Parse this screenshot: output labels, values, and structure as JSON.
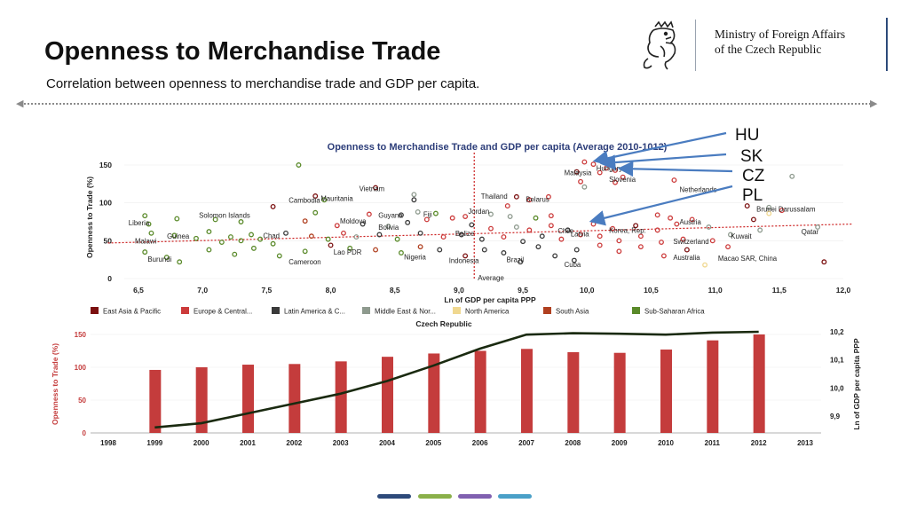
{
  "header": {
    "title": "Openness to Merchandise Trade",
    "subtitle": "Correlation between openness to merchandise trade and  GDP per capita.",
    "ministry_line1": "Ministry of Foreign Affairs",
    "ministry_line2": "of the Czech Republic",
    "logo_icon": "czech-lion-emblem-icon"
  },
  "annotations": [
    "HU",
    "SK",
    "CZ",
    "PL"
  ],
  "colors": {
    "east_asia": "#7b1010",
    "europe": "#cc3b3b",
    "latin": "#3a3a3a",
    "mideast": "#8e9a8e",
    "north_america": "#f0d890",
    "south_asia": "#b04020",
    "africa": "#5a8a2a",
    "bar": "#c43c3c",
    "line": "#1a2a10",
    "arrow": "#4a7cc0",
    "trend": "#cc2020",
    "title_blue": "#2d3e7a"
  },
  "bottom_pills": [
    "#2d4a7a",
    "#8ab04a",
    "#8060b0",
    "#4aa0c8"
  ],
  "chart_data": [
    {
      "type": "scatter",
      "title": "Openness to Merchandise Trade and GDP per capita (Average 2010-1012)",
      "xlabel": "Ln of GDP per capita PPP",
      "ylabel": "Openness to Trade (%)",
      "xlim": [
        6.5,
        12.0
      ],
      "ylim": [
        0,
        150
      ],
      "xticks": [
        "6,5",
        "7,0",
        "7,5",
        "8,0",
        "8,5",
        "9,0",
        "9,5",
        "10,0",
        "10,5",
        "11,0",
        "11,5",
        "12,0"
      ],
      "yticks": [
        "0",
        "50",
        "100",
        "150"
      ],
      "average_label": "Average",
      "average_x": 9.12,
      "trend": {
        "x": [
          6.4,
          12.0
        ],
        "y": [
          47,
          72
        ]
      },
      "legend": [
        {
          "name": "East Asia & Pacific",
          "color": "#7b1010"
        },
        {
          "name": "Europe & Central...",
          "color": "#cc3b3b"
        },
        {
          "name": "Latin America & C...",
          "color": "#3a3a3a"
        },
        {
          "name": "Middle East & Nor...",
          "color": "#8e9a8e"
        },
        {
          "name": "North America",
          "color": "#f0d890"
        },
        {
          "name": "South Asia",
          "color": "#b04020"
        },
        {
          "name": "Sub-Saharan Africa",
          "color": "#5a8a2a"
        }
      ],
      "labels": [
        {
          "text": "Hungary",
          "x": 10.1,
          "y": 146
        },
        {
          "text": "Malaysia",
          "x": 9.85,
          "y": 140
        },
        {
          "text": "Netherlands",
          "x": 10.75,
          "y": 118
        },
        {
          "text": "Slovenia",
          "x": 10.2,
          "y": 131
        },
        {
          "text": "Vietnam",
          "x": 8.25,
          "y": 119
        },
        {
          "text": "Cambodia",
          "x": 7.7,
          "y": 104
        },
        {
          "text": "Mauritania",
          "x": 7.95,
          "y": 106
        },
        {
          "text": "Thailand",
          "x": 9.2,
          "y": 109
        },
        {
          "text": "Belarus",
          "x": 9.55,
          "y": 105
        },
        {
          "text": "Brunei Darussalam",
          "x": 11.35,
          "y": 92
        },
        {
          "text": "Solomon Islands",
          "x": 7.0,
          "y": 84
        },
        {
          "text": "Guyana",
          "x": 8.4,
          "y": 84
        },
        {
          "text": "Fiji",
          "x": 8.75,
          "y": 85
        },
        {
          "text": "Jordan",
          "x": 9.1,
          "y": 89
        },
        {
          "text": "Moldova",
          "x": 8.1,
          "y": 76
        },
        {
          "text": "Austria",
          "x": 10.75,
          "y": 75
        },
        {
          "text": "Liberia",
          "x": 6.45,
          "y": 74
        },
        {
          "text": "Bolivia",
          "x": 8.4,
          "y": 68
        },
        {
          "text": "Belize",
          "x": 9.0,
          "y": 60
        },
        {
          "text": "Latvia",
          "x": 9.9,
          "y": 59
        },
        {
          "text": "Chile",
          "x": 9.8,
          "y": 63
        },
        {
          "text": "Korea, Rep.",
          "x": 10.2,
          "y": 64
        },
        {
          "text": "Qatar",
          "x": 11.7,
          "y": 62
        },
        {
          "text": "Guinea",
          "x": 6.75,
          "y": 56
        },
        {
          "text": "Chad",
          "x": 7.5,
          "y": 57
        },
        {
          "text": "Kuwait",
          "x": 11.15,
          "y": 56
        },
        {
          "text": "Malawi",
          "x": 6.5,
          "y": 50
        },
        {
          "text": "Switzerland",
          "x": 10.7,
          "y": 49
        },
        {
          "text": "Lao PDR",
          "x": 8.05,
          "y": 35
        },
        {
          "text": "Nigeria",
          "x": 8.6,
          "y": 29
        },
        {
          "text": "Burundi",
          "x": 6.6,
          "y": 26
        },
        {
          "text": "Cameroon",
          "x": 7.7,
          "y": 22
        },
        {
          "text": "Indonesia",
          "x": 8.95,
          "y": 24
        },
        {
          "text": "Brazil",
          "x": 9.4,
          "y": 25
        },
        {
          "text": "Cuba",
          "x": 9.85,
          "y": 19
        },
        {
          "text": "Australia",
          "x": 10.7,
          "y": 28
        },
        {
          "text": "Macao SAR, China",
          "x": 11.05,
          "y": 27
        }
      ],
      "points": [
        {
          "x": 7.75,
          "y": 150,
          "c": "africa"
        },
        {
          "x": 10.15,
          "y": 146,
          "c": "europe"
        },
        {
          "x": 10.05,
          "y": 151,
          "c": "europe"
        },
        {
          "x": 9.98,
          "y": 154,
          "c": "europe"
        },
        {
          "x": 9.92,
          "y": 141,
          "c": "east_asia"
        },
        {
          "x": 10.1,
          "y": 140,
          "c": "europe"
        },
        {
          "x": 10.22,
          "y": 143,
          "c": "europe"
        },
        {
          "x": 10.68,
          "y": 130,
          "c": "europe"
        },
        {
          "x": 10.28,
          "y": 134,
          "c": "europe"
        },
        {
          "x": 10.22,
          "y": 127,
          "c": "europe"
        },
        {
          "x": 9.95,
          "y": 128,
          "c": "europe"
        },
        {
          "x": 9.98,
          "y": 121,
          "c": "mideast"
        },
        {
          "x": 11.6,
          "y": 135,
          "c": "mideast"
        },
        {
          "x": 8.35,
          "y": 120,
          "c": "east_asia"
        },
        {
          "x": 7.88,
          "y": 109,
          "c": "east_asia"
        },
        {
          "x": 7.95,
          "y": 104,
          "c": "africa"
        },
        {
          "x": 8.65,
          "y": 111,
          "c": "mideast"
        },
        {
          "x": 8.65,
          "y": 104,
          "c": "latin"
        },
        {
          "x": 9.45,
          "y": 108,
          "c": "east_asia"
        },
        {
          "x": 9.55,
          "y": 104,
          "c": "europe"
        },
        {
          "x": 9.7,
          "y": 108,
          "c": "europe"
        },
        {
          "x": 9.38,
          "y": 96,
          "c": "europe"
        },
        {
          "x": 11.25,
          "y": 96,
          "c": "east_asia"
        },
        {
          "x": 11.42,
          "y": 94,
          "c": "mideast"
        },
        {
          "x": 7.55,
          "y": 95,
          "c": "east_asia"
        },
        {
          "x": 7.88,
          "y": 87,
          "c": "africa"
        },
        {
          "x": 8.3,
          "y": 85,
          "c": "europe"
        },
        {
          "x": 8.55,
          "y": 84,
          "c": "latin"
        },
        {
          "x": 8.68,
          "y": 88,
          "c": "mideast"
        },
        {
          "x": 8.82,
          "y": 86,
          "c": "africa"
        },
        {
          "x": 8.95,
          "y": 80,
          "c": "europe"
        },
        {
          "x": 9.05,
          "y": 82,
          "c": "europe"
        },
        {
          "x": 9.25,
          "y": 85,
          "c": "mideast"
        },
        {
          "x": 9.4,
          "y": 82,
          "c": "mideast"
        },
        {
          "x": 9.6,
          "y": 80,
          "c": "africa"
        },
        {
          "x": 9.72,
          "y": 83,
          "c": "europe"
        },
        {
          "x": 10.55,
          "y": 84,
          "c": "europe"
        },
        {
          "x": 10.65,
          "y": 80,
          "c": "europe"
        },
        {
          "x": 10.82,
          "y": 78,
          "c": "europe"
        },
        {
          "x": 11.3,
          "y": 78,
          "c": "east_asia"
        },
        {
          "x": 11.42,
          "y": 86,
          "c": "north_america"
        },
        {
          "x": 11.52,
          "y": 90,
          "c": "europe"
        },
        {
          "x": 6.55,
          "y": 83,
          "c": "africa"
        },
        {
          "x": 6.8,
          "y": 79,
          "c": "africa"
        },
        {
          "x": 7.1,
          "y": 78,
          "c": "africa"
        },
        {
          "x": 7.3,
          "y": 75,
          "c": "africa"
        },
        {
          "x": 7.8,
          "y": 76,
          "c": "south_asia"
        },
        {
          "x": 8.05,
          "y": 70,
          "c": "europe"
        },
        {
          "x": 8.25,
          "y": 72,
          "c": "latin"
        },
        {
          "x": 8.45,
          "y": 69,
          "c": "mideast"
        },
        {
          "x": 8.6,
          "y": 74,
          "c": "latin"
        },
        {
          "x": 8.75,
          "y": 78,
          "c": "europe"
        },
        {
          "x": 9.1,
          "y": 71,
          "c": "latin"
        },
        {
          "x": 9.25,
          "y": 66,
          "c": "europe"
        },
        {
          "x": 9.45,
          "y": 68,
          "c": "mideast"
        },
        {
          "x": 9.55,
          "y": 64,
          "c": "europe"
        },
        {
          "x": 9.72,
          "y": 70,
          "c": "europe"
        },
        {
          "x": 9.85,
          "y": 64,
          "c": "latin"
        },
        {
          "x": 10.05,
          "y": 72,
          "c": "europe"
        },
        {
          "x": 10.2,
          "y": 66,
          "c": "europe"
        },
        {
          "x": 10.38,
          "y": 70,
          "c": "east_asia"
        },
        {
          "x": 10.55,
          "y": 64,
          "c": "europe"
        },
        {
          "x": 10.7,
          "y": 72,
          "c": "europe"
        },
        {
          "x": 10.95,
          "y": 68,
          "c": "mideast"
        },
        {
          "x": 11.8,
          "y": 68,
          "c": "mideast"
        },
        {
          "x": 11.35,
          "y": 64,
          "c": "mideast"
        },
        {
          "x": 6.58,
          "y": 72,
          "c": "africa"
        },
        {
          "x": 6.6,
          "y": 60,
          "c": "africa"
        },
        {
          "x": 6.78,
          "y": 57,
          "c": "africa"
        },
        {
          "x": 6.95,
          "y": 53,
          "c": "africa"
        },
        {
          "x": 7.05,
          "y": 62,
          "c": "africa"
        },
        {
          "x": 7.15,
          "y": 48,
          "c": "africa"
        },
        {
          "x": 7.22,
          "y": 55,
          "c": "africa"
        },
        {
          "x": 7.3,
          "y": 50,
          "c": "africa"
        },
        {
          "x": 7.38,
          "y": 58,
          "c": "africa"
        },
        {
          "x": 7.45,
          "y": 52,
          "c": "africa"
        },
        {
          "x": 7.55,
          "y": 46,
          "c": "africa"
        },
        {
          "x": 7.65,
          "y": 60,
          "c": "latin"
        },
        {
          "x": 7.85,
          "y": 56,
          "c": "south_asia"
        },
        {
          "x": 7.98,
          "y": 52,
          "c": "africa"
        },
        {
          "x": 8.1,
          "y": 60,
          "c": "europe"
        },
        {
          "x": 8.2,
          "y": 55,
          "c": "mideast"
        },
        {
          "x": 8.38,
          "y": 58,
          "c": "latin"
        },
        {
          "x": 8.52,
          "y": 52,
          "c": "africa"
        },
        {
          "x": 8.7,
          "y": 60,
          "c": "latin"
        },
        {
          "x": 8.88,
          "y": 55,
          "c": "europe"
        },
        {
          "x": 9.02,
          "y": 58,
          "c": "latin"
        },
        {
          "x": 9.18,
          "y": 52,
          "c": "latin"
        },
        {
          "x": 9.35,
          "y": 55,
          "c": "europe"
        },
        {
          "x": 9.5,
          "y": 49,
          "c": "latin"
        },
        {
          "x": 9.65,
          "y": 56,
          "c": "latin"
        },
        {
          "x": 9.8,
          "y": 52,
          "c": "europe"
        },
        {
          "x": 9.95,
          "y": 58,
          "c": "europe"
        },
        {
          "x": 10.1,
          "y": 56,
          "c": "europe"
        },
        {
          "x": 10.25,
          "y": 50,
          "c": "europe"
        },
        {
          "x": 10.42,
          "y": 56,
          "c": "europe"
        },
        {
          "x": 10.58,
          "y": 48,
          "c": "europe"
        },
        {
          "x": 10.75,
          "y": 52,
          "c": "europe"
        },
        {
          "x": 10.98,
          "y": 50,
          "c": "europe"
        },
        {
          "x": 11.12,
          "y": 58,
          "c": "mideast"
        },
        {
          "x": 6.55,
          "y": 35,
          "c": "africa"
        },
        {
          "x": 6.72,
          "y": 28,
          "c": "africa"
        },
        {
          "x": 6.82,
          "y": 22,
          "c": "africa"
        },
        {
          "x": 7.05,
          "y": 38,
          "c": "africa"
        },
        {
          "x": 7.25,
          "y": 32,
          "c": "africa"
        },
        {
          "x": 7.4,
          "y": 40,
          "c": "africa"
        },
        {
          "x": 7.6,
          "y": 30,
          "c": "africa"
        },
        {
          "x": 7.8,
          "y": 36,
          "c": "africa"
        },
        {
          "x": 8.0,
          "y": 44,
          "c": "east_asia"
        },
        {
          "x": 8.15,
          "y": 40,
          "c": "africa"
        },
        {
          "x": 8.35,
          "y": 38,
          "c": "south_asia"
        },
        {
          "x": 8.55,
          "y": 34,
          "c": "africa"
        },
        {
          "x": 8.7,
          "y": 42,
          "c": "south_asia"
        },
        {
          "x": 8.85,
          "y": 38,
          "c": "latin"
        },
        {
          "x": 9.05,
          "y": 30,
          "c": "east_asia"
        },
        {
          "x": 9.2,
          "y": 38,
          "c": "latin"
        },
        {
          "x": 9.35,
          "y": 34,
          "c": "latin"
        },
        {
          "x": 9.48,
          "y": 22,
          "c": "latin"
        },
        {
          "x": 9.62,
          "y": 42,
          "c": "latin"
        },
        {
          "x": 9.75,
          "y": 30,
          "c": "latin"
        },
        {
          "x": 9.92,
          "y": 38,
          "c": "latin"
        },
        {
          "x": 10.1,
          "y": 44,
          "c": "europe"
        },
        {
          "x": 10.25,
          "y": 36,
          "c": "europe"
        },
        {
          "x": 10.42,
          "y": 42,
          "c": "europe"
        },
        {
          "x": 10.6,
          "y": 30,
          "c": "europe"
        },
        {
          "x": 10.78,
          "y": 38,
          "c": "east_asia"
        },
        {
          "x": 10.92,
          "y": 18,
          "c": "north_america"
        },
        {
          "x": 11.1,
          "y": 42,
          "c": "europe"
        },
        {
          "x": 11.85,
          "y": 22,
          "c": "east_asia"
        },
        {
          "x": 9.9,
          "y": 24,
          "c": "latin"
        }
      ]
    },
    {
      "type": "bar",
      "title": "Czech Republic",
      "categories": [
        "1998",
        "1999",
        "2000",
        "2001",
        "2002",
        "2003",
        "2004",
        "2005",
        "2006",
        "2007",
        "2008",
        "2009",
        "2010",
        "2011",
        "2012",
        "2013"
      ],
      "ylabel": "Openness to Trade (%)",
      "y2label": "Ln of GDP per capita PPP",
      "ylim": [
        0,
        150
      ],
      "y2lim": [
        9.85,
        10.2
      ],
      "yticks": [
        "0",
        "50",
        "100",
        "150"
      ],
      "y2ticks": [
        "9,9",
        "10,0",
        "10,1",
        "10,2"
      ],
      "series": [
        {
          "type": "bar",
          "values": [
            null,
            96,
            100,
            104,
            105,
            109,
            116,
            121,
            125,
            128,
            123,
            122,
            127,
            141,
            151,
            null
          ]
        },
        {
          "type": "line",
          "values": [
            null,
            9.86,
            9.875,
            9.91,
            9.945,
            9.98,
            10.025,
            10.08,
            10.14,
            10.19,
            10.195,
            10.193,
            10.19,
            10.197,
            10.2,
            null
          ]
        }
      ]
    }
  ]
}
